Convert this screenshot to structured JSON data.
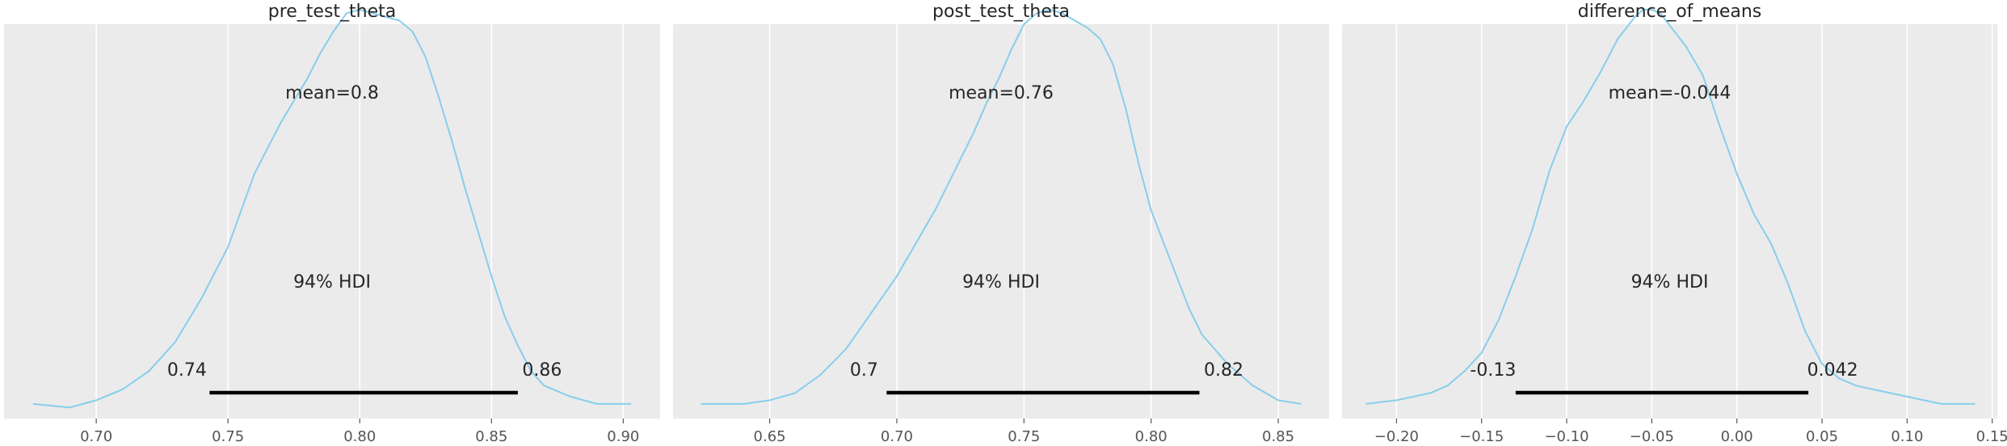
{
  "figure": {
    "background": "#ffffff",
    "axes_background": "#ebebeb",
    "grid_color": "#ffffff",
    "curve_color": "#87ceeb",
    "hdi_color": "#000000",
    "text_color": "#262626",
    "tick_color": "#555555"
  },
  "chart_data": [
    {
      "type": "area",
      "title": "pre_test_theta",
      "xlabel": "",
      "ylabel": "",
      "xlim": [
        0.665,
        0.914
      ],
      "ylim": [
        0,
        1.08
      ],
      "grid": "vertical",
      "xticks": [
        0.7,
        0.75,
        0.8,
        0.85,
        0.9
      ],
      "xtick_labels": [
        "0.70",
        "0.75",
        "0.80",
        "0.85",
        "0.90"
      ],
      "density": {
        "x": [
          0.676,
          0.69,
          0.7,
          0.71,
          0.72,
          0.73,
          0.74,
          0.75,
          0.755,
          0.76,
          0.765,
          0.77,
          0.775,
          0.78,
          0.785,
          0.79,
          0.795,
          0.8,
          0.805,
          0.81,
          0.815,
          0.82,
          0.825,
          0.83,
          0.835,
          0.84,
          0.845,
          0.85,
          0.855,
          0.86,
          0.865,
          0.87,
          0.88,
          0.89,
          0.903
        ],
        "y": [
          0.04,
          0.03,
          0.05,
          0.08,
          0.13,
          0.21,
          0.33,
          0.47,
          0.57,
          0.67,
          0.74,
          0.81,
          0.87,
          0.93,
          1.0,
          1.06,
          1.11,
          1.12,
          1.11,
          1.1,
          1.09,
          1.06,
          0.99,
          0.88,
          0.76,
          0.63,
          0.51,
          0.39,
          0.28,
          0.2,
          0.13,
          0.09,
          0.06,
          0.04,
          0.04
        ]
      },
      "mean_label": "mean=0.8",
      "hdi_label": "94% HDI",
      "hdi": {
        "low": 0.743,
        "high": 0.86,
        "low_label": "0.74",
        "high_label": "0.86"
      }
    },
    {
      "type": "area",
      "title": "post_test_theta",
      "xlabel": "",
      "ylabel": "",
      "xlim": [
        0.612,
        0.87
      ],
      "ylim": [
        0,
        1.08
      ],
      "grid": "vertical",
      "xticks": [
        0.65,
        0.7,
        0.75,
        0.8,
        0.85
      ],
      "xtick_labels": [
        "0.65",
        "0.70",
        "0.75",
        "0.80",
        "0.85"
      ],
      "density": {
        "x": [
          0.623,
          0.64,
          0.65,
          0.66,
          0.67,
          0.68,
          0.69,
          0.7,
          0.705,
          0.71,
          0.715,
          0.72,
          0.725,
          0.73,
          0.735,
          0.74,
          0.745,
          0.75,
          0.755,
          0.76,
          0.765,
          0.77,
          0.775,
          0.78,
          0.785,
          0.79,
          0.795,
          0.8,
          0.805,
          0.81,
          0.815,
          0.82,
          0.825,
          0.83,
          0.84,
          0.85,
          0.859
        ],
        "y": [
          0.04,
          0.04,
          0.05,
          0.07,
          0.12,
          0.19,
          0.29,
          0.39,
          0.45,
          0.51,
          0.57,
          0.64,
          0.71,
          0.78,
          0.86,
          0.93,
          1.01,
          1.08,
          1.11,
          1.12,
          1.11,
          1.09,
          1.07,
          1.04,
          0.97,
          0.85,
          0.7,
          0.57,
          0.48,
          0.39,
          0.3,
          0.23,
          0.19,
          0.15,
          0.09,
          0.05,
          0.04
        ]
      },
      "mean_label": "mean=0.76",
      "hdi_label": "94% HDI",
      "hdi": {
        "low": 0.696,
        "high": 0.819,
        "low_label": "0.7",
        "high_label": "0.82"
      }
    },
    {
      "type": "area",
      "title": "difference_of_means",
      "xlabel": "",
      "ylabel": "",
      "xlim": [
        -0.232,
        0.153
      ],
      "ylim": [
        0,
        1.08
      ],
      "grid": "vertical",
      "xticks": [
        -0.2,
        -0.15,
        -0.1,
        -0.05,
        0.0,
        0.05,
        0.1,
        0.15
      ],
      "xtick_labels": [
        "−0.20",
        "−0.15",
        "−0.10",
        "−0.05",
        "0.00",
        "0.05",
        "0.10",
        "0.15"
      ],
      "density": {
        "x": [
          -0.218,
          -0.2,
          -0.18,
          -0.17,
          -0.16,
          -0.15,
          -0.14,
          -0.13,
          -0.12,
          -0.11,
          -0.1,
          -0.09,
          -0.08,
          -0.07,
          -0.06,
          -0.055,
          -0.05,
          -0.045,
          -0.04,
          -0.035,
          -0.03,
          -0.02,
          -0.01,
          0.0,
          0.01,
          0.02,
          0.03,
          0.04,
          0.05,
          0.06,
          0.07,
          0.08,
          0.09,
          0.1,
          0.12,
          0.14
        ],
        "y": [
          0.04,
          0.05,
          0.07,
          0.09,
          0.13,
          0.18,
          0.27,
          0.39,
          0.52,
          0.68,
          0.8,
          0.87,
          0.95,
          1.04,
          1.1,
          1.12,
          1.12,
          1.11,
          1.08,
          1.05,
          1.02,
          0.94,
          0.8,
          0.67,
          0.56,
          0.48,
          0.37,
          0.24,
          0.15,
          0.11,
          0.09,
          0.08,
          0.07,
          0.06,
          0.04,
          0.04
        ]
      },
      "mean_label": "mean=-0.044",
      "hdi_label": "94% HDI",
      "hdi": {
        "low": -0.13,
        "high": 0.042,
        "low_label": "-0.13",
        "high_label": "0.042"
      }
    }
  ]
}
